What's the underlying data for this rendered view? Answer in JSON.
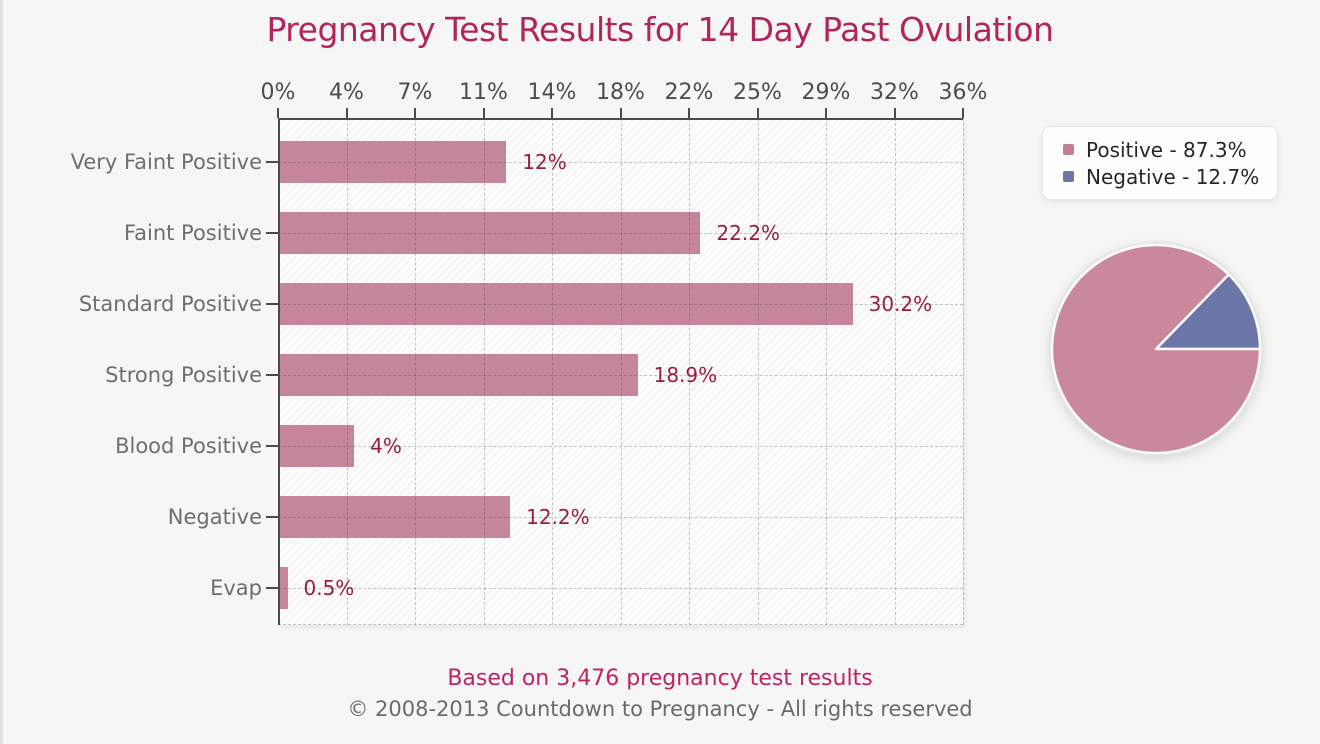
{
  "title": {
    "text": "Pregnancy Test Results for 14 Day Past Ovulation",
    "color": "#b2245c"
  },
  "footer": {
    "primary": "Based on 3,476 pregnancy test results",
    "primary_color": "#c02263",
    "copyright": "© 2008-2013 Countdown to Pregnancy - All rights reserved"
  },
  "legend": {
    "items": [
      {
        "label": "Positive - 87.3%",
        "color": "#c57f93"
      },
      {
        "label": "Negative - 12.7%",
        "color": "#6b75a7"
      }
    ]
  },
  "chart_data": [
    {
      "type": "bar",
      "orientation": "horizontal",
      "title": "Pregnancy Test Results for 14 Day Past Ovulation",
      "categories": [
        "Very Faint Positive",
        "Faint Positive",
        "Standard Positive",
        "Strong Positive",
        "Blood Positive",
        "Negative",
        "Evap"
      ],
      "values": [
        12,
        22.2,
        30.2,
        18.9,
        4,
        12.2,
        0.5
      ],
      "value_labels": [
        "12%",
        "22.2%",
        "30.2%",
        "18.9%",
        "4%",
        "12.2%",
        "0.5%"
      ],
      "xlabel": "",
      "ylabel": "",
      "xlim": [
        0,
        36
      ],
      "axis_position": "top",
      "axis_ticks": [
        0,
        3.6,
        7.2,
        10.8,
        14.4,
        18,
        21.6,
        25.2,
        28.8,
        32.4,
        36
      ],
      "axis_tick_labels": [
        "0%",
        "4%",
        "7%",
        "11%",
        "14%",
        "18%",
        "22%",
        "25%",
        "29%",
        "32%",
        "36%"
      ],
      "grid": "dashed",
      "hatched_background": true,
      "bar_color": "#c5859a",
      "value_label_color": "#9b1c3f"
    },
    {
      "type": "pie",
      "slices": [
        {
          "label": "Positive",
          "value": 87.3,
          "color": "#ca889c"
        },
        {
          "label": "Negative",
          "value": 12.7,
          "color": "#6b75a7"
        }
      ],
      "legend_position": "top-right"
    }
  ]
}
